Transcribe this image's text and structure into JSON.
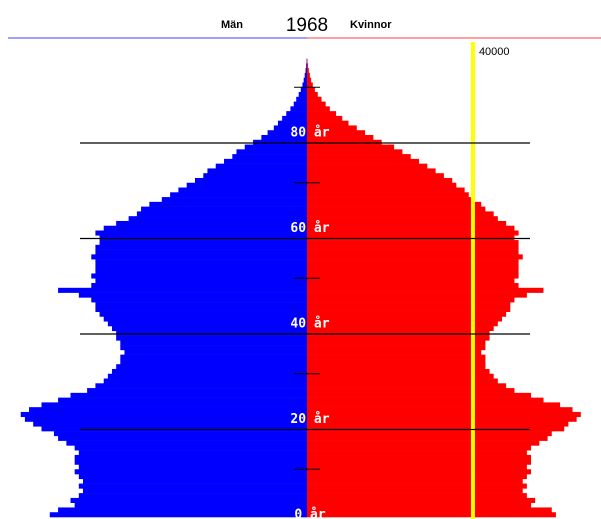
{
  "chart_data": {
    "type": "population-pyramid",
    "title": "1968",
    "left_label": "Män",
    "right_label": "Kvinnor",
    "xlim": [
      0,
      74000
    ],
    "ylim": [
      0,
      100
    ],
    "yticks": [
      {
        "value": 0,
        "label": "0 år"
      },
      {
        "value": 20,
        "label": "20 år"
      },
      {
        "value": 40,
        "label": "40 år"
      },
      {
        "value": 60,
        "label": "60 år"
      },
      {
        "value": 80,
        "label": "80 år"
      }
    ],
    "minor_yticks": [
      10,
      30,
      50,
      70,
      90
    ],
    "reference": {
      "value": 40000,
      "label": "40000",
      "color": "#ffff00"
    },
    "series": [
      {
        "name": "Män",
        "color": "#0000ff",
        "values": [
          62000,
          60000,
          56000,
          57000,
          55000,
          54000,
          55000,
          54000,
          55000,
          56000,
          55000,
          56000,
          56000,
          55000,
          56000,
          58000,
          60000,
          61000,
          64000,
          66000,
          68000,
          69000,
          67000,
          64000,
          60000,
          57000,
          53000,
          51000,
          49000,
          48000,
          47000,
          46000,
          45000,
          45000,
          44000,
          45000,
          45000,
          46000,
          46000,
          47000,
          48000,
          49000,
          50000,
          51000,
          51000,
          52000,
          55000,
          60000,
          52000,
          51000,
          52000,
          51000,
          51000,
          51000,
          52000,
          51000,
          51000,
          50000,
          50000,
          51000,
          49000,
          46000,
          43000,
          41000,
          40000,
          38000,
          35000,
          33000,
          31000,
          29000,
          27000,
          25000,
          24000,
          22000,
          20000,
          18000,
          17000,
          15000,
          13000,
          11000,
          9500,
          8000,
          7000,
          6000,
          5000,
          4000,
          3200,
          2600,
          2000,
          1500,
          1100,
          800,
          550,
          350,
          200,
          100
        ]
      },
      {
        "name": "Kvinnor",
        "color": "#ff0000",
        "values": [
          60000,
          59000,
          54000,
          55000,
          53000,
          52000,
          53000,
          52000,
          53000,
          54000,
          53000,
          54000,
          54000,
          53000,
          54000,
          56000,
          58000,
          59000,
          62000,
          63000,
          65000,
          66000,
          64000,
          61000,
          57000,
          54000,
          50000,
          48000,
          46000,
          45000,
          44000,
          43000,
          43000,
          43000,
          42000,
          43000,
          43000,
          44000,
          44000,
          45000,
          46000,
          47000,
          48000,
          49000,
          49000,
          50000,
          53000,
          57000,
          51000,
          50000,
          51000,
          51000,
          51000,
          51000,
          52000,
          51000,
          51000,
          51000,
          50000,
          51000,
          50000,
          48000,
          46000,
          45000,
          43000,
          42000,
          40000,
          39000,
          38000,
          36000,
          35000,
          33000,
          31000,
          29000,
          27000,
          25000,
          23000,
          21000,
          18000,
          16000,
          14000,
          12000,
          10000,
          8500,
          7000,
          5500,
          4500,
          3500,
          2600,
          1900,
          1400,
          1000,
          700,
          450,
          250,
          120
        ]
      }
    ]
  }
}
